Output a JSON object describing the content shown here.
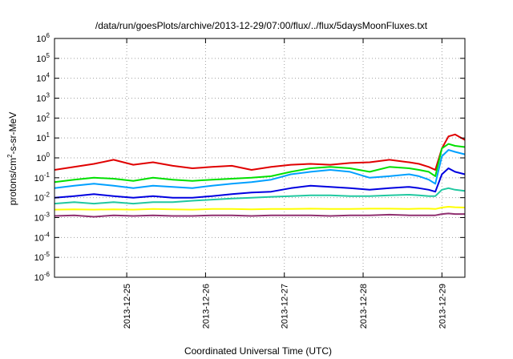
{
  "chart_data": {
    "type": "line",
    "title": "/data/run/goesPlots/archive/2013-12-29/07:00/flux/../flux/5daysMoonFluxes.txt",
    "xlabel": "Coordinated Universal Time (UTC)",
    "ylabel": {
      "prefix": "protons/cm",
      "exponent": "2",
      "suffix": "-s-sr-MeV"
    },
    "y_scale": "log",
    "ylim": [
      1e-06,
      1000000
    ],
    "xlim": [
      "2013-12-24T02:00",
      "2013-12-29T07:00"
    ],
    "grid": true,
    "legend": "none",
    "x_ticks": [
      "2013-12-25",
      "2013-12-26",
      "2013-12-27",
      "2013-12-28",
      "2013-12-29"
    ],
    "y_ticks": [
      {
        "base": "10",
        "exp": "-6",
        "value": 1e-06
      },
      {
        "base": "10",
        "exp": "-5",
        "value": 1e-05
      },
      {
        "base": "10",
        "exp": "-4",
        "value": 0.0001
      },
      {
        "base": "10",
        "exp": "-3",
        "value": 0.001
      },
      {
        "base": "10",
        "exp": "-2",
        "value": 0.01
      },
      {
        "base": "10",
        "exp": "-1",
        "value": 0.1
      },
      {
        "base": "10",
        "exp": "0",
        "value": 1
      },
      {
        "base": "10",
        "exp": "1",
        "value": 10
      },
      {
        "base": "10",
        "exp": "2",
        "value": 100
      },
      {
        "base": "10",
        "exp": "3",
        "value": 1000
      },
      {
        "base": "10",
        "exp": "4",
        "value": 10000
      },
      {
        "base": "10",
        "exp": "5",
        "value": 100000
      },
      {
        "base": "10",
        "exp": "6",
        "value": 1000000
      }
    ],
    "series": [
      {
        "color": "#e00000",
        "x": [
          "2013-12-24T02:00",
          "2013-12-24T08:00",
          "2013-12-24T14:00",
          "2013-12-24T20:00",
          "2013-12-25T02:00",
          "2013-12-25T08:00",
          "2013-12-25T14:00",
          "2013-12-25T20:00",
          "2013-12-26T02:00",
          "2013-12-26T08:00",
          "2013-12-26T14:00",
          "2013-12-26T20:00",
          "2013-12-27T02:00",
          "2013-12-27T08:00",
          "2013-12-27T14:00",
          "2013-12-27T20:00",
          "2013-12-28T02:00",
          "2013-12-28T08:00",
          "2013-12-28T14:00",
          "2013-12-28T17:00",
          "2013-12-28T20:00",
          "2013-12-28T22:00",
          "2013-12-29T00:00",
          "2013-12-29T02:00",
          "2013-12-29T04:00",
          "2013-12-29T07:00"
        ],
        "y": [
          0.25,
          0.35,
          0.5,
          0.8,
          0.45,
          0.6,
          0.4,
          0.3,
          0.35,
          0.4,
          0.25,
          0.35,
          0.45,
          0.5,
          0.45,
          0.55,
          0.6,
          0.8,
          0.6,
          0.5,
          0.35,
          0.25,
          3,
          12,
          15,
          8
        ]
      },
      {
        "color": "#00e000",
        "x": [
          "2013-12-24T02:00",
          "2013-12-24T08:00",
          "2013-12-24T14:00",
          "2013-12-24T20:00",
          "2013-12-25T02:00",
          "2013-12-25T08:00",
          "2013-12-25T14:00",
          "2013-12-25T20:00",
          "2013-12-26T02:00",
          "2013-12-26T08:00",
          "2013-12-26T14:00",
          "2013-12-26T20:00",
          "2013-12-27T02:00",
          "2013-12-27T08:00",
          "2013-12-27T14:00",
          "2013-12-27T20:00",
          "2013-12-28T02:00",
          "2013-12-28T08:00",
          "2013-12-28T14:00",
          "2013-12-28T17:00",
          "2013-12-28T20:00",
          "2013-12-28T22:00",
          "2013-12-29T00:00",
          "2013-12-29T02:00",
          "2013-12-29T04:00",
          "2013-12-29T07:00"
        ],
        "y": [
          0.06,
          0.08,
          0.1,
          0.09,
          0.07,
          0.1,
          0.08,
          0.07,
          0.08,
          0.09,
          0.1,
          0.12,
          0.2,
          0.3,
          0.35,
          0.3,
          0.2,
          0.35,
          0.3,
          0.25,
          0.2,
          0.12,
          3,
          5,
          4,
          3.5
        ]
      },
      {
        "color": "#00a0ff",
        "x": [
          "2013-12-24T02:00",
          "2013-12-24T08:00",
          "2013-12-24T14:00",
          "2013-12-24T20:00",
          "2013-12-25T02:00",
          "2013-12-25T08:00",
          "2013-12-25T14:00",
          "2013-12-25T20:00",
          "2013-12-26T02:00",
          "2013-12-26T08:00",
          "2013-12-26T14:00",
          "2013-12-26T20:00",
          "2013-12-27T02:00",
          "2013-12-27T08:00",
          "2013-12-27T14:00",
          "2013-12-27T20:00",
          "2013-12-28T02:00",
          "2013-12-28T08:00",
          "2013-12-28T14:00",
          "2013-12-28T17:00",
          "2013-12-28T20:00",
          "2013-12-28T22:00",
          "2013-12-29T00:00",
          "2013-12-29T02:00",
          "2013-12-29T04:00",
          "2013-12-29T07:00"
        ],
        "y": [
          0.03,
          0.04,
          0.05,
          0.04,
          0.03,
          0.04,
          0.035,
          0.03,
          0.04,
          0.05,
          0.06,
          0.08,
          0.15,
          0.2,
          0.25,
          0.2,
          0.1,
          0.12,
          0.15,
          0.12,
          0.08,
          0.05,
          1.2,
          2.5,
          2,
          1.5
        ]
      },
      {
        "color": "#0000e0",
        "x": [
          "2013-12-24T02:00",
          "2013-12-24T08:00",
          "2013-12-24T14:00",
          "2013-12-24T20:00",
          "2013-12-25T02:00",
          "2013-12-25T08:00",
          "2013-12-25T14:00",
          "2013-12-25T20:00",
          "2013-12-26T02:00",
          "2013-12-26T08:00",
          "2013-12-26T14:00",
          "2013-12-26T20:00",
          "2013-12-27T02:00",
          "2013-12-27T08:00",
          "2013-12-27T14:00",
          "2013-12-27T20:00",
          "2013-12-28T02:00",
          "2013-12-28T08:00",
          "2013-12-28T14:00",
          "2013-12-28T17:00",
          "2013-12-28T20:00",
          "2013-12-28T22:00",
          "2013-12-29T00:00",
          "2013-12-29T02:00",
          "2013-12-29T04:00",
          "2013-12-29T07:00"
        ],
        "y": [
          0.01,
          0.012,
          0.015,
          0.012,
          0.01,
          0.012,
          0.01,
          0.01,
          0.012,
          0.015,
          0.018,
          0.02,
          0.03,
          0.04,
          0.035,
          0.03,
          0.025,
          0.03,
          0.035,
          0.03,
          0.025,
          0.02,
          0.15,
          0.3,
          0.2,
          0.15
        ]
      },
      {
        "color": "#20c8a0",
        "x": [
          "2013-12-24T02:00",
          "2013-12-24T08:00",
          "2013-12-24T14:00",
          "2013-12-24T20:00",
          "2013-12-25T02:00",
          "2013-12-25T08:00",
          "2013-12-25T14:00",
          "2013-12-25T20:00",
          "2013-12-26T02:00",
          "2013-12-26T08:00",
          "2013-12-26T14:00",
          "2013-12-26T20:00",
          "2013-12-27T02:00",
          "2013-12-27T08:00",
          "2013-12-27T14:00",
          "2013-12-27T20:00",
          "2013-12-28T02:00",
          "2013-12-28T08:00",
          "2013-12-28T14:00",
          "2013-12-28T17:00",
          "2013-12-28T20:00",
          "2013-12-28T22:00",
          "2013-12-29T00:00",
          "2013-12-29T02:00",
          "2013-12-29T04:00",
          "2013-12-29T07:00"
        ],
        "y": [
          0.005,
          0.006,
          0.005,
          0.006,
          0.005,
          0.006,
          0.006,
          0.007,
          0.008,
          0.009,
          0.01,
          0.011,
          0.012,
          0.013,
          0.013,
          0.012,
          0.012,
          0.013,
          0.014,
          0.013,
          0.012,
          0.012,
          0.025,
          0.03,
          0.025,
          0.022
        ]
      },
      {
        "color": "#ffff00",
        "x": [
          "2013-12-24T02:00",
          "2013-12-24T08:00",
          "2013-12-24T14:00",
          "2013-12-24T20:00",
          "2013-12-25T02:00",
          "2013-12-25T08:00",
          "2013-12-25T14:00",
          "2013-12-25T20:00",
          "2013-12-26T02:00",
          "2013-12-26T08:00",
          "2013-12-26T14:00",
          "2013-12-26T20:00",
          "2013-12-27T02:00",
          "2013-12-27T08:00",
          "2013-12-27T14:00",
          "2013-12-27T20:00",
          "2013-12-28T02:00",
          "2013-12-28T08:00",
          "2013-12-28T14:00",
          "2013-12-28T17:00",
          "2013-12-28T20:00",
          "2013-12-28T22:00",
          "2013-12-29T00:00",
          "2013-12-29T02:00",
          "2013-12-29T04:00",
          "2013-12-29T07:00"
        ],
        "y": [
          0.0025,
          0.0026,
          0.0025,
          0.0026,
          0.0025,
          0.0027,
          0.0026,
          0.0025,
          0.0027,
          0.0027,
          0.0026,
          0.0027,
          0.0027,
          0.0028,
          0.0027,
          0.0027,
          0.0028,
          0.0028,
          0.0027,
          0.0028,
          0.0028,
          0.0027,
          0.0032,
          0.0035,
          0.0033,
          0.0032
        ]
      },
      {
        "color": "#903070",
        "x": [
          "2013-12-24T02:00",
          "2013-12-24T08:00",
          "2013-12-24T14:00",
          "2013-12-24T20:00",
          "2013-12-25T02:00",
          "2013-12-25T08:00",
          "2013-12-25T14:00",
          "2013-12-25T20:00",
          "2013-12-26T02:00",
          "2013-12-26T08:00",
          "2013-12-26T14:00",
          "2013-12-26T20:00",
          "2013-12-27T02:00",
          "2013-12-27T08:00",
          "2013-12-27T14:00",
          "2013-12-27T20:00",
          "2013-12-28T02:00",
          "2013-12-28T08:00",
          "2013-12-28T14:00",
          "2013-12-28T17:00",
          "2013-12-28T20:00",
          "2013-12-28T22:00",
          "2013-12-29T00:00",
          "2013-12-29T02:00",
          "2013-12-29T04:00",
          "2013-12-29T07:00"
        ],
        "y": [
          0.0012,
          0.0013,
          0.0011,
          0.0013,
          0.0012,
          0.0013,
          0.0012,
          0.0012,
          0.0013,
          0.0013,
          0.0012,
          0.0013,
          0.0013,
          0.0013,
          0.0012,
          0.0013,
          0.0013,
          0.0014,
          0.0013,
          0.0013,
          0.0013,
          0.0013,
          0.0015,
          0.0016,
          0.0015,
          0.0015
        ]
      }
    ]
  }
}
